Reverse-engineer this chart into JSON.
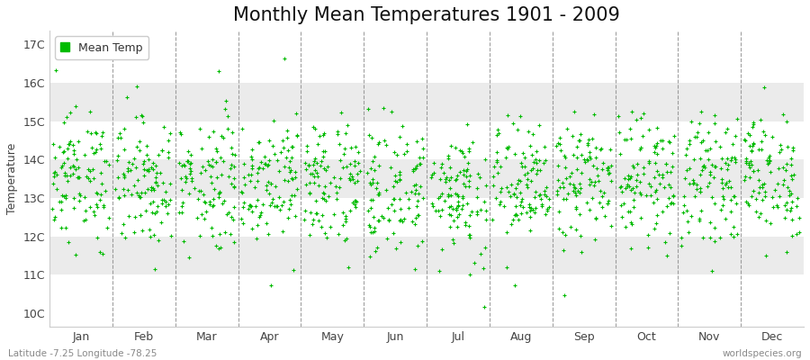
{
  "title": "Monthly Mean Temperatures 1901 - 2009",
  "ylabel": "Temperature",
  "xlabel_labels": [
    "Jan",
    "Feb",
    "Mar",
    "Apr",
    "May",
    "Jun",
    "Jul",
    "Aug",
    "Sep",
    "Oct",
    "Nov",
    "Dec"
  ],
  "ytick_labels": [
    "10C",
    "11C",
    "12C",
    "13C",
    "14C",
    "15C",
    "16C",
    "17C"
  ],
  "ytick_values": [
    10,
    11,
    12,
    13,
    14,
    15,
    16,
    17
  ],
  "ylim": [
    9.65,
    17.35
  ],
  "background_color": "#ffffff",
  "stripe_colors": [
    "#ffffff",
    "#ebebeb",
    "#ffffff",
    "#ebebeb",
    "#ffffff",
    "#ebebeb",
    "#ffffff"
  ],
  "dot_color": "#00bb00",
  "dot_size": 5,
  "legend_label": "Mean Temp",
  "footer_left": "Latitude -7.25 Longitude -78.25",
  "footer_right": "worldspecies.org",
  "title_fontsize": 15,
  "axis_fontsize": 9,
  "tick_fontsize": 9,
  "monthly_means": [
    13.55,
    13.45,
    13.45,
    13.55,
    13.4,
    13.2,
    13.15,
    13.3,
    13.4,
    13.5,
    13.5,
    13.55
  ],
  "monthly_stds": [
    0.85,
    0.85,
    0.9,
    0.8,
    0.85,
    0.88,
    0.88,
    0.82,
    0.78,
    0.78,
    0.78,
    0.82
  ],
  "n_years": 109,
  "seed": 12345
}
